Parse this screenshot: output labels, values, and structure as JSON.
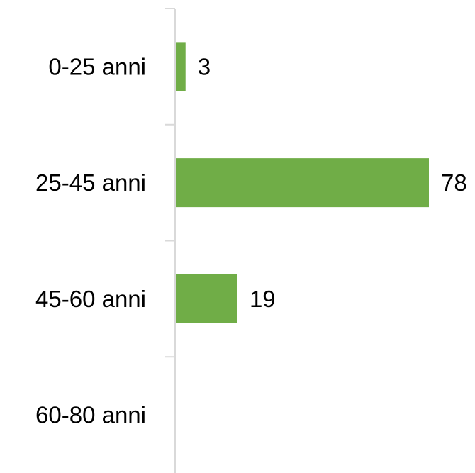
{
  "chart_data": {
    "type": "bar",
    "orientation": "horizontal",
    "categories": [
      "0-25 anni",
      "25-45 anni",
      "45-60 anni",
      "60-80 anni"
    ],
    "values": [
      3,
      78,
      19,
      null
    ],
    "data_labels": [
      "3",
      "78",
      "19",
      ""
    ],
    "title": "",
    "xlabel": "",
    "ylabel": "",
    "xlim": [
      0,
      78
    ],
    "grid": false,
    "legend": "none",
    "bar_color": "#70ad47",
    "axis_color": "#d9d9d9"
  }
}
